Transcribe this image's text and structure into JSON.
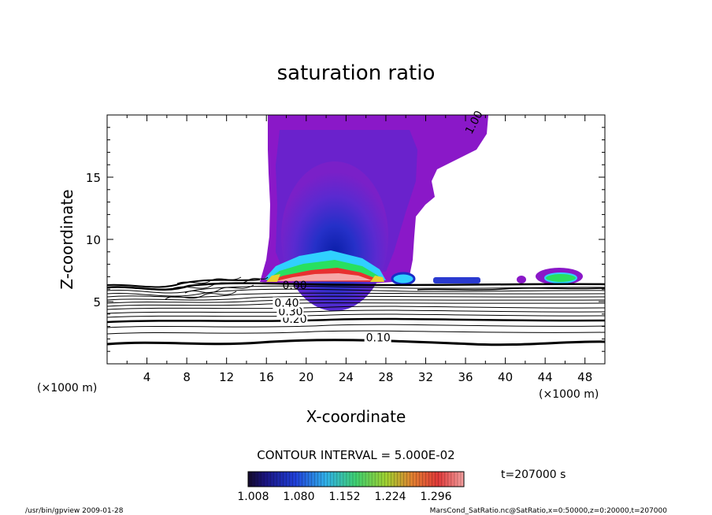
{
  "chart_data": {
    "type": "heatmap",
    "title": "saturation ratio",
    "xlabel": "X-coordinate",
    "ylabel": "Z-coordinate",
    "x_unit": "(×1000 m)",
    "z_unit": "(×1000 m)",
    "xlim": [
      0,
      50
    ],
    "zlim": [
      0,
      20
    ],
    "x_ticks": [
      4,
      8,
      12,
      16,
      20,
      24,
      28,
      32,
      36,
      40,
      44,
      48
    ],
    "z_ticks": [
      5,
      10,
      15
    ],
    "contour_labels": [
      {
        "value": "0.10",
        "x": 26,
        "z": 1.8
      },
      {
        "value": "0.20",
        "x": 17.6,
        "z": 3.3
      },
      {
        "value": "0.30",
        "x": 17.2,
        "z": 3.9
      },
      {
        "value": "0.40",
        "x": 16.8,
        "z": 4.6
      },
      {
        "value": "1.00",
        "x": 36.6,
        "z": 18.4
      },
      {
        "value": "0.00",
        "x": 17.6,
        "z": 6.0
      }
    ],
    "contour_interval": "CONTOUR INTERVAL = 5.000E-02",
    "colorbar": {
      "min": 1.0,
      "max": 1.34,
      "tick_labels": [
        "1.008",
        "1.080",
        "1.152",
        "1.224",
        "1.296"
      ]
    },
    "time_label": "t=207000 s"
  },
  "footer": {
    "left": "/usr/bin/gpview  2009-01-28",
    "right": "MarsCond_SatRatio.nc@SatRatio,x=0:50000,z=0:20000,t=207000"
  },
  "colors": {
    "cloud_outer": "#8a18c8",
    "cloud_mid": "#5a2ad0",
    "cloud_core": "#1a2cc8",
    "hot_band": "#e83030",
    "green_patch": "#28e060",
    "cyan_patch": "#30d0ff",
    "contour": "#000000"
  }
}
